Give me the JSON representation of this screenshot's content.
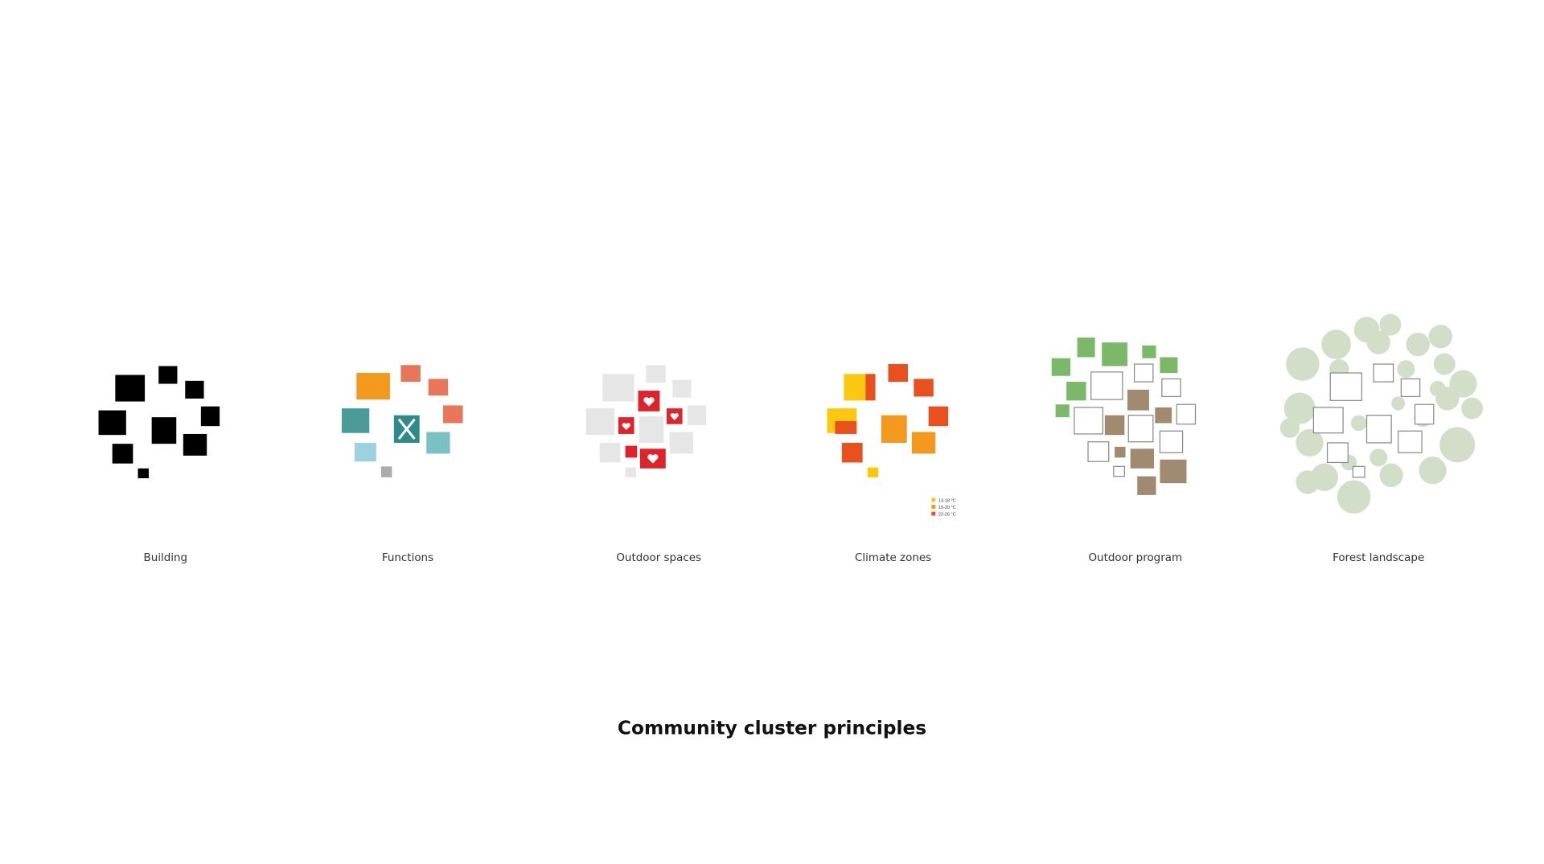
{
  "panels": [
    {
      "label": "Building"
    },
    {
      "label": "Functions"
    },
    {
      "label": "Outdoor spaces"
    },
    {
      "label": "Climate zones"
    },
    {
      "label": "Outdoor program"
    },
    {
      "label": "Forest landscape"
    }
  ],
  "climate_legend": [
    "13-18 °C",
    "15-20 °C",
    "22-26 °C"
  ],
  "title": "Community cluster principles"
}
